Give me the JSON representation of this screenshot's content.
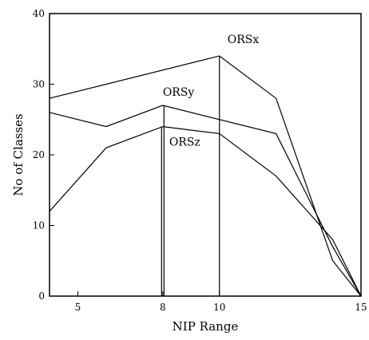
{
  "chart_data": {
    "type": "line",
    "xlabel": "NIP Range",
    "ylabel": "No of Classes",
    "xlim": [
      4,
      15
    ],
    "ylim": [
      0,
      40
    ],
    "x_ticks": [
      5,
      8,
      10,
      15
    ],
    "y_ticks": [
      0,
      10,
      20,
      30,
      40
    ],
    "grid": false,
    "series": [
      {
        "name": "ORSx",
        "points": [
          [
            4,
            28
          ],
          [
            10,
            34
          ],
          [
            12,
            28
          ],
          [
            14,
            5
          ],
          [
            15,
            0
          ]
        ],
        "annotation_x": 10
      },
      {
        "name": "ORSy",
        "points": [
          [
            4,
            26
          ],
          [
            6,
            24
          ],
          [
            8,
            27
          ],
          [
            12,
            23
          ],
          [
            14,
            7
          ],
          [
            15,
            0
          ]
        ],
        "annotation_x": 8
      },
      {
        "name": "ORSz",
        "points": [
          [
            4,
            12
          ],
          [
            6,
            21
          ],
          [
            8,
            24
          ],
          [
            10,
            23
          ],
          [
            12,
            17
          ],
          [
            14,
            8
          ],
          [
            15,
            0
          ]
        ],
        "annotation_x": 8
      }
    ],
    "line_color": "#000000"
  }
}
